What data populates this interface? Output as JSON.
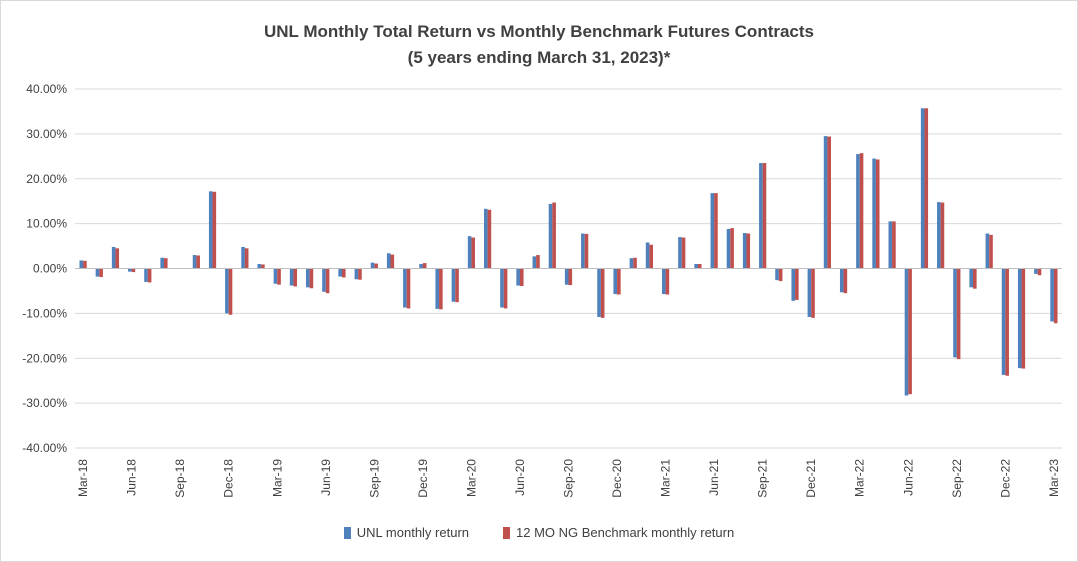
{
  "chart_data": {
    "type": "bar",
    "title": "UNL Monthly Total Return vs Monthly Benchmark Futures Contracts",
    "subtitle": "(5 years ending March 31, 2023)*",
    "xlabel": "",
    "ylabel": "",
    "ylim": [
      -40,
      40
    ],
    "y_ticks": [
      "40.00%",
      "30.00%",
      "20.00%",
      "10.00%",
      "0.00%",
      "-10.00%",
      "-20.00%",
      "-30.00%",
      "-40.00%"
    ],
    "grid": true,
    "legend_position": "bottom",
    "categories": [
      "Mar-18",
      "Apr-18",
      "May-18",
      "Jun-18",
      "Jul-18",
      "Aug-18",
      "Sep-18",
      "Oct-18",
      "Nov-18",
      "Dec-18",
      "Jan-19",
      "Feb-19",
      "Mar-19",
      "Apr-19",
      "May-19",
      "Jun-19",
      "Jul-19",
      "Aug-19",
      "Sep-19",
      "Oct-19",
      "Nov-19",
      "Dec-19",
      "Jan-20",
      "Feb-20",
      "Mar-20",
      "Apr-20",
      "May-20",
      "Jun-20",
      "Jul-20",
      "Aug-20",
      "Sep-20",
      "Oct-20",
      "Nov-20",
      "Dec-20",
      "Jan-21",
      "Feb-21",
      "Mar-21",
      "Apr-21",
      "May-21",
      "Jun-21",
      "Jul-21",
      "Aug-21",
      "Sep-21",
      "Oct-21",
      "Nov-21",
      "Dec-21",
      "Jan-22",
      "Feb-22",
      "Mar-22",
      "Apr-22",
      "May-22",
      "Jun-22",
      "Jul-22",
      "Aug-22",
      "Sep-22",
      "Oct-22",
      "Nov-22",
      "Dec-22",
      "Jan-23",
      "Feb-23",
      "Mar-23"
    ],
    "x_tick_labels": [
      "Mar-18",
      "Jun-18",
      "Sep-18",
      "Dec-18",
      "Mar-19",
      "Jun-19",
      "Sep-19",
      "Dec-19",
      "Mar-20",
      "Jun-20",
      "Sep-20",
      "Dec-20",
      "Mar-21",
      "Jun-21",
      "Sep-21",
      "Dec-21",
      "Mar-22",
      "Jun-22",
      "Sep-22",
      "Dec-22",
      "Mar-23"
    ],
    "series": [
      {
        "name": "UNL monthly return",
        "color": "#4f81bd",
        "values": [
          1.8,
          -1.8,
          4.8,
          -0.7,
          -3.0,
          2.4,
          0.0,
          3.0,
          17.2,
          -10.0,
          4.8,
          1.0,
          -3.4,
          -3.8,
          -4.2,
          -5.2,
          -1.8,
          -2.4,
          1.3,
          3.4,
          -8.7,
          1.0,
          -9.0,
          -7.4,
          7.2,
          13.3,
          -8.7,
          -3.8,
          2.7,
          14.4,
          -3.6,
          7.8,
          -10.8,
          -5.7,
          2.3,
          5.8,
          -5.7,
          7.0,
          1.0,
          16.8,
          8.8,
          7.9,
          23.5,
          -2.6,
          -7.2,
          -10.8,
          29.5,
          -5.3,
          25.5,
          24.5,
          10.5,
          -28.3,
          35.7,
          14.8,
          -19.8,
          -4.2,
          7.8,
          -23.7,
          -22.2,
          -1.2,
          -11.8
        ]
      },
      {
        "name": "12 MO NG Benchmark monthly return",
        "color": "#c0504d",
        "values": [
          1.7,
          -1.9,
          4.5,
          -0.8,
          -3.1,
          2.3,
          0.0,
          2.9,
          17.1,
          -10.3,
          4.5,
          0.9,
          -3.6,
          -4.0,
          -4.4,
          -5.5,
          -2.0,
          -2.5,
          1.1,
          3.1,
          -8.9,
          1.2,
          -9.1,
          -7.5,
          6.9,
          13.1,
          -8.9,
          -3.9,
          3.0,
          14.7,
          -3.7,
          7.7,
          -11.0,
          -5.8,
          2.4,
          5.3,
          -5.8,
          6.9,
          1.0,
          16.8,
          9.0,
          7.8,
          23.5,
          -2.8,
          -7.0,
          -11.0,
          29.4,
          -5.5,
          25.7,
          24.3,
          10.5,
          -28.0,
          35.7,
          14.7,
          -20.2,
          -4.5,
          7.5,
          -23.9,
          -22.3,
          -1.5,
          -12.2
        ]
      }
    ]
  }
}
